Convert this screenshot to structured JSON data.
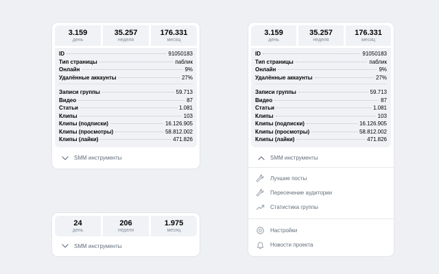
{
  "cardA": {
    "stats": [
      {
        "value": "3.159",
        "label": "день"
      },
      {
        "value": "35.257",
        "label": "неделя"
      },
      {
        "value": "176.331",
        "label": "месяц"
      }
    ],
    "info1": [
      {
        "key": "ID",
        "value": "91050183"
      },
      {
        "key": "Тип страницы",
        "value": "паблик"
      },
      {
        "key": "Онлайн",
        "value": "9%"
      },
      {
        "key": "Удалённые аккаунты",
        "value": "27%"
      }
    ],
    "info2": [
      {
        "key": "Записи группы",
        "value": "59.713"
      },
      {
        "key": "Видео",
        "value": "87"
      },
      {
        "key": "Статьи",
        "value": "1.081"
      },
      {
        "key": "Клипы",
        "value": "103"
      },
      {
        "key": "Клипы (подписки)",
        "value": "16.126.905"
      },
      {
        "key": "Клипы (просмотры)",
        "value": "58.812.002"
      },
      {
        "key": "Клипы (лайки)",
        "value": "471.826"
      }
    ],
    "toggle_label": "SMM инструменты"
  },
  "cardB": {
    "stats": [
      {
        "value": "24",
        "label": "день"
      },
      {
        "value": "206",
        "label": "неделя"
      },
      {
        "value": "1.975",
        "label": "месяц"
      }
    ],
    "toggle_label": "SMM инструменты"
  },
  "cardC": {
    "stats": [
      {
        "value": "3.159",
        "label": "день"
      },
      {
        "value": "35.257",
        "label": "неделя"
      },
      {
        "value": "176.331",
        "label": "месяц"
      }
    ],
    "info1": [
      {
        "key": "ID",
        "value": "91050183"
      },
      {
        "key": "Тип страницы",
        "value": "паблик"
      },
      {
        "key": "Онлайн",
        "value": "9%"
      },
      {
        "key": "Удалённые аккаунты",
        "value": "27%"
      }
    ],
    "info2": [
      {
        "key": "Записи группы",
        "value": "59.713"
      },
      {
        "key": "Видео",
        "value": "87"
      },
      {
        "key": "Статьи",
        "value": "1.081"
      },
      {
        "key": "Клипы",
        "value": "103"
      },
      {
        "key": "Клипы (подписки)",
        "value": "16.126.905"
      },
      {
        "key": "Клипы (просмотры)",
        "value": "58.812.002"
      },
      {
        "key": "Клипы (лайки)",
        "value": "471.826"
      }
    ],
    "toggle_label": "SMM инструменты",
    "menu": [
      {
        "label": "Лучшие посты",
        "icon": "wrench-icon"
      },
      {
        "label": "Пересечение аудитории",
        "icon": "wrench-icon"
      },
      {
        "label": "Статистика группы",
        "icon": "trend-chart-icon"
      }
    ],
    "menu2": [
      {
        "label": "Настройки",
        "icon": "gear-icon"
      },
      {
        "label": "Новости проекта",
        "icon": "bell-icon"
      }
    ]
  },
  "colors": {
    "background": "#eef0f3",
    "panel": "#f0f2f5",
    "muted_text": "#626d7a",
    "label_text": "#818c99"
  }
}
